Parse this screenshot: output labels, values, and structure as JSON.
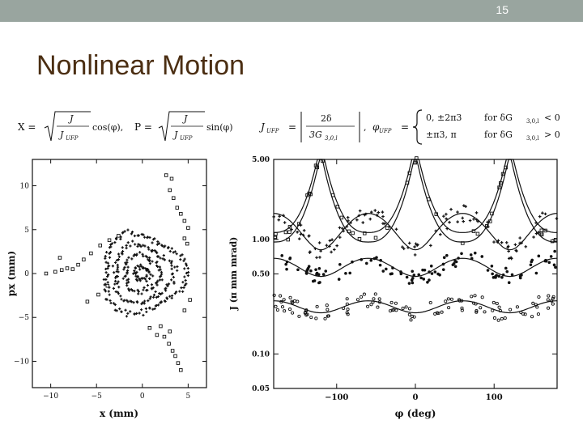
{
  "slide": {
    "page_number": "15",
    "title": "Nonlinear Motion",
    "header_color": "#99a59f",
    "title_color": "#4b2e12"
  },
  "equations": {
    "x_lhs": "X =",
    "sqrt_num": "J",
    "sqrt_den": "J",
    "sqrt_den_sub": "UFP",
    "cos_term": "cos(φ),",
    "p_lhs": "P =",
    "sin_term": "sin(φ)",
    "jufp_lhs": "J",
    "jufp_sub": "UFP",
    "jufp_eq": "=",
    "frac_num": "2δ",
    "frac_den": "3G",
    "frac_den_sub": "3,0,l",
    "comma": ",",
    "phi_lhs": "φ",
    "phi_sub": "UFP",
    "phi_eq": "=",
    "case1": "0, ±2π3",
    "case1_cond": "for δG",
    "case1_cond_sub": "3,0,l",
    "case1_ineq": "< 0",
    "case2": "±π3, π",
    "case2_cond": "for δG",
    "case2_cond_sub": "3,0,l",
    "case2_ineq": "> 0"
  },
  "chart_data": [
    {
      "type": "scatter",
      "xlabel": "x (mm)",
      "ylabel": "px (mm)",
      "xlim": [
        -12,
        7
      ],
      "ylim": [
        -13,
        13
      ],
      "x_ticks": [
        -10,
        -5,
        0,
        5
      ],
      "y_ticks": [
        -10,
        -5,
        0,
        5,
        10
      ],
      "x_tick_labels": [
        "−10",
        "−5",
        "0",
        "5"
      ],
      "y_tick_labels": [
        "−10",
        "−5",
        "0",
        "5",
        "10"
      ],
      "rings": [
        {
          "radius": 0.8,
          "points": 40
        },
        {
          "radius": 2.0,
          "points": 70
        },
        {
          "radius": 3.2,
          "points": 100
        },
        {
          "radius": 4.4,
          "points": 130
        }
      ],
      "separatrix_points": [
        [
          -9.5,
          0.2
        ],
        [
          -8.8,
          0.4
        ],
        [
          -8.2,
          0.6
        ],
        [
          -7.6,
          0.5
        ],
        [
          -7.0,
          1.0
        ],
        [
          -6.4,
          1.6
        ],
        [
          -5.6,
          2.3
        ],
        [
          -4.6,
          3.2
        ],
        [
          -3.6,
          3.8
        ],
        [
          -2.6,
          4.3
        ],
        [
          -9.0,
          1.8
        ],
        [
          -10.5,
          0.0
        ],
        [
          3.0,
          9.5
        ],
        [
          3.4,
          8.6
        ],
        [
          3.8,
          7.5
        ],
        [
          4.2,
          6.8
        ],
        [
          4.6,
          6.0
        ],
        [
          5.0,
          5.2
        ],
        [
          4.6,
          4.0
        ],
        [
          3.2,
          10.8
        ],
        [
          2.6,
          11.2
        ],
        [
          4.9,
          3.4
        ],
        [
          2.0,
          -6.0
        ],
        [
          2.4,
          -7.2
        ],
        [
          2.9,
          -8.0
        ],
        [
          3.3,
          -8.8
        ],
        [
          3.6,
          -9.4
        ],
        [
          3.9,
          -10.2
        ],
        [
          1.6,
          -7.0
        ],
        [
          3.0,
          -6.6
        ],
        [
          4.2,
          -11.0
        ],
        [
          0.8,
          -6.2
        ],
        [
          4.6,
          -4.2
        ],
        [
          5.2,
          -3.0
        ],
        [
          -3.8,
          -1.4
        ],
        [
          -4.8,
          -2.4
        ],
        [
          -6.0,
          -3.2
        ]
      ]
    },
    {
      "type": "scatter",
      "xlabel": "φ (deg)",
      "ylabel": "J (π mm mrad)",
      "xlim": [
        -180,
        180
      ],
      "ylim": [
        0.05,
        5.0
      ],
      "yscale": "log",
      "x_ticks": [
        -100,
        0,
        100
      ],
      "x_tick_labels": [
        "−100",
        "0",
        "100"
      ],
      "y_ticks": [
        5.0,
        1.0,
        0.5,
        0.1,
        0.05
      ],
      "y_tick_labels": [
        "5.00",
        "1.00",
        "0.50",
        "0.10",
        "0.05"
      ],
      "bands": [
        {
          "name": "inner",
          "center": 0.26,
          "amplitude": 0.12,
          "phase_deg": 60
        },
        {
          "name": "middle",
          "center": 0.58,
          "amplitude": 0.18,
          "phase_deg": 60
        },
        {
          "name": "upper",
          "center": 1.25,
          "amplitude": 0.35,
          "phase_deg": 60
        }
      ],
      "separatrix_min_J": 0.95,
      "separatrix_top_J": 5.0,
      "separatrix_period_deg": 120
    }
  ]
}
